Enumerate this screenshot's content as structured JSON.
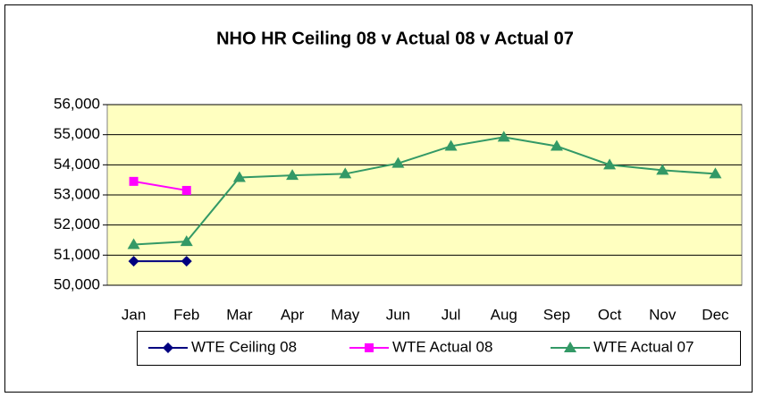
{
  "chart_data": {
    "type": "line",
    "title": "NHO HR Ceiling 08 v Actual 08 v Actual 07",
    "categories": [
      "Jan",
      "Feb",
      "Mar",
      "Apr",
      "May",
      "Jun",
      "Jul",
      "Aug",
      "Sep",
      "Oct",
      "Nov",
      "Dec"
    ],
    "series": [
      {
        "name": "WTE Ceiling 08",
        "color": "#000080",
        "marker": "diamond",
        "values": [
          50800,
          50800,
          null,
          null,
          null,
          null,
          null,
          null,
          null,
          null,
          null,
          null
        ]
      },
      {
        "name": "WTE Actual 08",
        "color": "#ff00ff",
        "marker": "square",
        "values": [
          53450,
          53150,
          null,
          null,
          null,
          null,
          null,
          null,
          null,
          null,
          null,
          null
        ]
      },
      {
        "name": "WTE Actual 07",
        "color": "#339966",
        "marker": "triangle",
        "values": [
          51350,
          51450,
          53580,
          53650,
          53700,
          54050,
          54620,
          54920,
          54620,
          54000,
          53820,
          53700
        ]
      }
    ],
    "ylim": [
      50000,
      56000
    ],
    "yticks": [
      {
        "value": 50000,
        "label": "50,000"
      },
      {
        "value": 51000,
        "label": "51,000"
      },
      {
        "value": 52000,
        "label": "52,000"
      },
      {
        "value": 53000,
        "label": "53,000"
      },
      {
        "value": 54000,
        "label": "54,000"
      },
      {
        "value": 55000,
        "label": "55,000"
      },
      {
        "value": 56000,
        "label": "56,000"
      }
    ],
    "grid": true,
    "legend": "bottom"
  }
}
